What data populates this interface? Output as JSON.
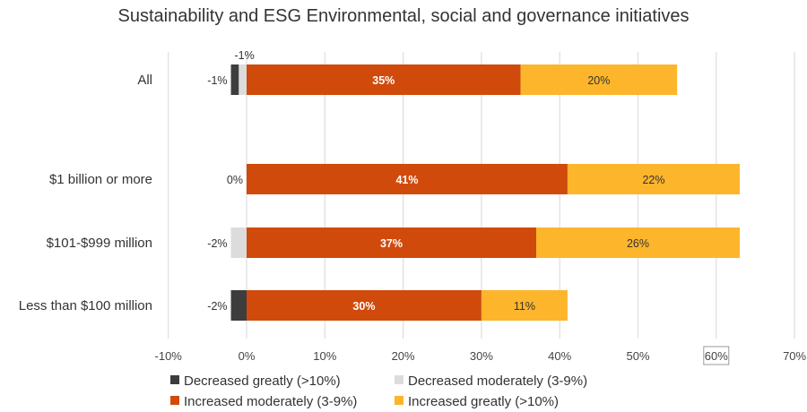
{
  "chart_data": {
    "type": "bar",
    "orientation": "horizontal",
    "stacked": "diverging",
    "title": "Sustainability and ESG Environmental, social and governance initiatives",
    "xlabel": "",
    "ylabel": "",
    "xlim": [
      -10,
      70
    ],
    "x_ticks": [
      -10,
      0,
      10,
      20,
      30,
      40,
      50,
      60,
      70
    ],
    "x_tick_labels": [
      "-10%",
      "0%",
      "10%",
      "20%",
      "30%",
      "40%",
      "50%",
      "60%",
      "70%"
    ],
    "highlighted_tick": "60%",
    "grid": "vertical",
    "legend_position": "bottom",
    "categories": [
      "All",
      "$1 billion or more",
      "$101-$999 million",
      "Less than $100 million"
    ],
    "series": [
      {
        "name": "Decreased greatly (>10%)",
        "color": "#3d3d3d",
        "values": [
          -1,
          0,
          0,
          -2
        ]
      },
      {
        "name": "Decreased moderately (3-9%)",
        "color": "#dcdcdc",
        "values": [
          -1,
          0,
          -2,
          0
        ]
      },
      {
        "name": "Increased moderately (3-9%)",
        "color": "#d04a0c",
        "values": [
          35,
          41,
          37,
          30
        ]
      },
      {
        "name": "Increased greatly (>10%)",
        "color": "#fdb52b",
        "values": [
          20,
          22,
          26,
          11
        ]
      }
    ],
    "data_labels": [
      {
        "category": "All",
        "negative_labels": [
          "-1%",
          "-1%"
        ],
        "positive_labels": [
          "35%",
          "20%"
        ]
      },
      {
        "category": "$1 billion or more",
        "negative_labels": [
          "0%"
        ],
        "positive_labels": [
          "41%",
          "22%"
        ]
      },
      {
        "category": "$101-$999 million",
        "negative_labels": [
          "-2%"
        ],
        "positive_labels": [
          "37%",
          "26%"
        ]
      },
      {
        "category": "Less than $100 million",
        "negative_labels": [
          "-2%"
        ],
        "positive_labels": [
          "30%",
          "11%"
        ]
      }
    ]
  }
}
